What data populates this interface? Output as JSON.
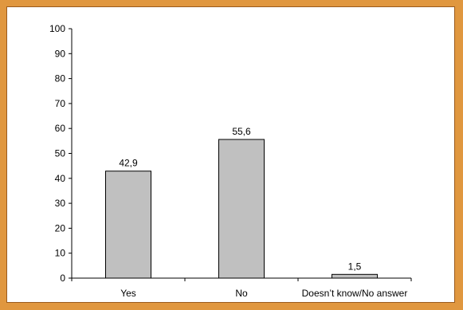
{
  "chart_data": {
    "type": "bar",
    "categories": [
      "Yes",
      "No",
      "Doesn’t know/No answer"
    ],
    "values": [
      42.9,
      55.6,
      1.5
    ],
    "data_labels": [
      "42,9",
      "55,6",
      "1,5"
    ],
    "title": "",
    "xlabel": "",
    "ylabel": "",
    "ylim": [
      0,
      100
    ],
    "yticks": [
      "0",
      "10",
      "20",
      "30",
      "40",
      "50",
      "60",
      "70",
      "80",
      "90",
      "100"
    ],
    "grid": false,
    "legend": "none",
    "colors": {
      "bar_fill": "#c0c0c0",
      "bar_stroke": "#000000",
      "frame": "#e0973f",
      "background": "#ffffff"
    }
  }
}
